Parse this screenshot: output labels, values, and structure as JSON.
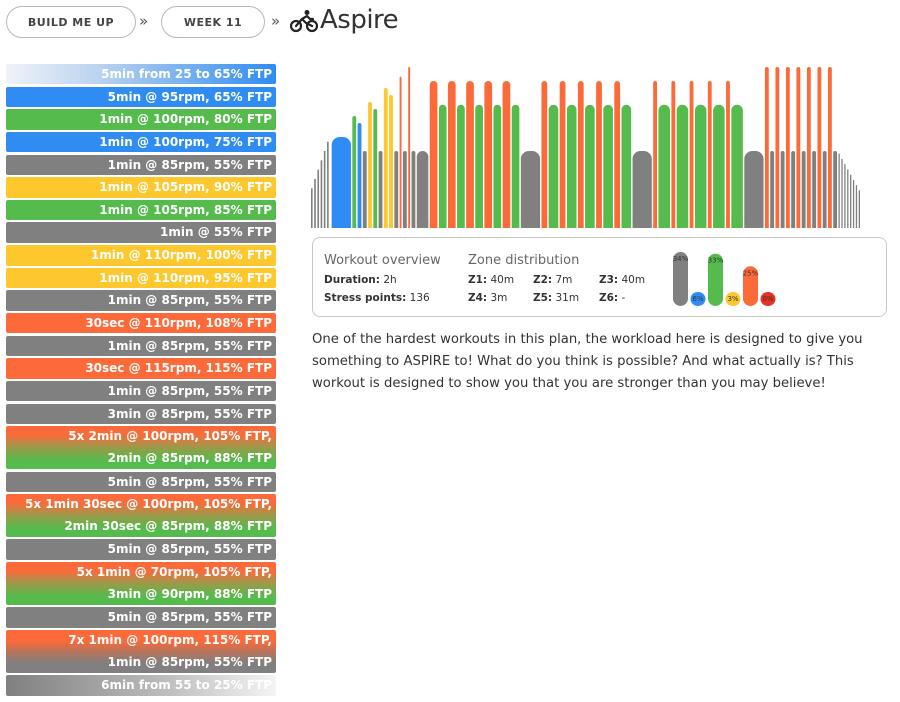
{
  "header": {
    "crumbs": [
      "BUILD ME UP",
      "WEEK 11"
    ],
    "separator": "»",
    "title": "Aspire"
  },
  "colors": {
    "grey": "#808080",
    "blue": "#2f8cf2",
    "green": "#55bb4c",
    "yellow": "#fdc72e",
    "orange": "#fd6a3a",
    "red": "#e53222"
  },
  "steps": [
    {
      "lines": [
        "5min from 25 to 65% FTP"
      ],
      "style": "ramp-up"
    },
    {
      "lines": [
        "5min @ 95rpm, 65% FTP"
      ],
      "style": "blue"
    },
    {
      "lines": [
        "1min @ 100rpm, 80% FTP"
      ],
      "style": "green"
    },
    {
      "lines": [
        "1min @ 100rpm, 75% FTP"
      ],
      "style": "blue"
    },
    {
      "lines": [
        "1min @ 85rpm, 55% FTP"
      ],
      "style": "grey"
    },
    {
      "lines": [
        "1min @ 105rpm, 90% FTP"
      ],
      "style": "yellow"
    },
    {
      "lines": [
        "1min @ 105rpm, 85% FTP"
      ],
      "style": "green"
    },
    {
      "lines": [
        "1min @ 55% FTP"
      ],
      "style": "grey"
    },
    {
      "lines": [
        "1min @ 110rpm, 100% FTP"
      ],
      "style": "yellow"
    },
    {
      "lines": [
        "1min @ 110rpm, 95% FTP"
      ],
      "style": "yellow"
    },
    {
      "lines": [
        "1min @ 85rpm, 55% FTP"
      ],
      "style": "grey"
    },
    {
      "lines": [
        "30sec @ 110rpm, 108% FTP"
      ],
      "style": "orange"
    },
    {
      "lines": [
        "1min @ 85rpm, 55% FTP"
      ],
      "style": "grey"
    },
    {
      "lines": [
        "30sec @ 115rpm, 115% FTP"
      ],
      "style": "orange"
    },
    {
      "lines": [
        "1min @ 85rpm, 55% FTP"
      ],
      "style": "grey"
    },
    {
      "lines": [
        "3min @ 85rpm, 55% FTP"
      ],
      "style": "grey"
    },
    {
      "lines": [
        "5x 2min @ 100rpm, 105% FTP,",
        "2min @ 85rpm, 88% FTP"
      ],
      "style": "orange-green"
    },
    {
      "lines": [
        "5min @ 85rpm, 55% FTP"
      ],
      "style": "grey"
    },
    {
      "lines": [
        "5x 1min 30sec @ 100rpm, 105% FTP,",
        "2min 30sec @ 85rpm, 88% FTP"
      ],
      "style": "orange-green"
    },
    {
      "lines": [
        "5min @ 85rpm, 55% FTP"
      ],
      "style": "grey"
    },
    {
      "lines": [
        "5x 1min @ 70rpm, 105% FTP,",
        "3min @ 90rpm, 88% FTP"
      ],
      "style": "orange-green"
    },
    {
      "lines": [
        "5min @ 85rpm, 55% FTP"
      ],
      "style": "grey"
    },
    {
      "lines": [
        "7x 1min @ 100rpm, 115% FTP,",
        "1min @ 85rpm, 55% FTP"
      ],
      "style": "orange-grey"
    },
    {
      "lines": [
        "6min from 55 to 25% FTP"
      ],
      "style": "ramp-down"
    }
  ],
  "overview": {
    "heading": "Workout overview",
    "duration_label": "Duration:",
    "duration": "2h",
    "stress_label": "Stress points:",
    "stress": "136"
  },
  "zones": {
    "heading": "Zone distribution",
    "items": [
      {
        "label": "Z1:",
        "value": "40m"
      },
      {
        "label": "Z2:",
        "value": "7m"
      },
      {
        "label": "Z3:",
        "value": "40m"
      },
      {
        "label": "Z4:",
        "value": "3m"
      },
      {
        "label": "Z5:",
        "value": "31m"
      },
      {
        "label": "Z6:",
        "value": "-"
      }
    ],
    "percentages": [
      {
        "zone": "Z1",
        "percent": 34,
        "label": "34%",
        "color": "#808080"
      },
      {
        "zone": "Z2",
        "percent": 6,
        "label": "6%",
        "color": "#2f8cf2"
      },
      {
        "zone": "Z3",
        "percent": 33,
        "label": "33%",
        "color": "#55bb4c"
      },
      {
        "zone": "Z4",
        "percent": 3,
        "label": "3%",
        "color": "#fdc72e"
      },
      {
        "zone": "Z5",
        "percent": 25,
        "label": "25%",
        "color": "#fd6a3a"
      },
      {
        "zone": "Z6",
        "percent": 0,
        "label": "0%",
        "color": "#e53222"
      }
    ]
  },
  "description": "One of the hardest workouts in this plan, the workload here is designed to give you something to ASPIRE to! What do you think is possible? And what actually is? This workout is designed to show you that you are stronger than you may believe!",
  "chart_data": {
    "type": "bar",
    "title": "",
    "xlabel": "",
    "ylabel": "",
    "segments": [
      {
        "minutes": 5,
        "from": 25,
        "to": 65,
        "zone": "ramp"
      },
      {
        "minutes": 5,
        "ftp": 65,
        "zone": "blue"
      },
      {
        "minutes": 1,
        "ftp": 80,
        "zone": "green"
      },
      {
        "minutes": 1,
        "ftp": 75,
        "zone": "blue"
      },
      {
        "minutes": 1,
        "ftp": 55,
        "zone": "grey"
      },
      {
        "minutes": 1,
        "ftp": 90,
        "zone": "yellow"
      },
      {
        "minutes": 1,
        "ftp": 85,
        "zone": "green"
      },
      {
        "minutes": 1,
        "ftp": 55,
        "zone": "grey"
      },
      {
        "minutes": 1,
        "ftp": 100,
        "zone": "yellow"
      },
      {
        "minutes": 1,
        "ftp": 95,
        "zone": "yellow"
      },
      {
        "minutes": 1,
        "ftp": 55,
        "zone": "grey"
      },
      {
        "minutes": 0.5,
        "ftp": 108,
        "zone": "orange"
      },
      {
        "minutes": 1,
        "ftp": 55,
        "zone": "grey"
      },
      {
        "minutes": 0.5,
        "ftp": 115,
        "zone": "orange"
      },
      {
        "minutes": 1,
        "ftp": 55,
        "zone": "grey"
      },
      {
        "minutes": 3,
        "ftp": 55,
        "zone": "grey"
      },
      {
        "repeat": 5,
        "on": {
          "minutes": 2,
          "ftp": 105,
          "zone": "orange"
        },
        "off": {
          "minutes": 2,
          "ftp": 88,
          "zone": "green"
        }
      },
      {
        "minutes": 5,
        "ftp": 55,
        "zone": "grey"
      },
      {
        "repeat": 5,
        "on": {
          "minutes": 1.5,
          "ftp": 105,
          "zone": "orange"
        },
        "off": {
          "minutes": 2.5,
          "ftp": 88,
          "zone": "green"
        }
      },
      {
        "minutes": 5,
        "ftp": 55,
        "zone": "grey"
      },
      {
        "repeat": 5,
        "on": {
          "minutes": 1,
          "ftp": 105,
          "zone": "orange"
        },
        "off": {
          "minutes": 3,
          "ftp": 88,
          "zone": "green"
        }
      },
      {
        "minutes": 5,
        "ftp": 55,
        "zone": "grey"
      },
      {
        "repeat": 7,
        "on": {
          "minutes": 1,
          "ftp": 115,
          "zone": "orange"
        },
        "off": {
          "minutes": 1,
          "ftp": 55,
          "zone": "grey"
        }
      },
      {
        "minutes": 6,
        "from": 55,
        "to": 25,
        "zone": "ramp"
      }
    ],
    "ylim": [
      0,
      120
    ]
  }
}
